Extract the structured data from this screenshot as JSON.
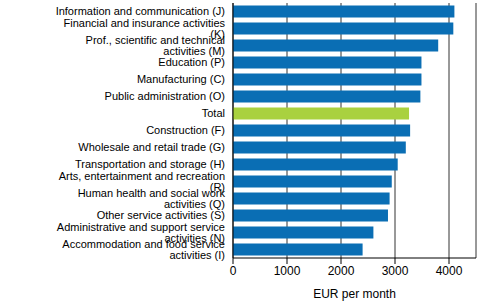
{
  "chart_data": {
    "type": "bar",
    "orientation": "horizontal",
    "x_label": "EUR per month",
    "categories": [
      "Information and communication (J)",
      "Financial and insurance activities (K)",
      "Prof., scientific and technical activities (M)",
      "Education (P)",
      "Manufacturing (C)",
      "Public administration (O)",
      "Total",
      "Construction (F)",
      "Wholesale and retail trade (G)",
      "Transportation and storage (H)",
      "Arts, entertainment and recreation (R)",
      "Human health and social work activities (Q)",
      "Other service activities (S)",
      "Administrative and support service activities (N)",
      "Accommodation and food service activities (I)"
    ],
    "values": [
      4100,
      4080,
      3800,
      3490,
      3490,
      3470,
      3260,
      3280,
      3200,
      3050,
      2940,
      2900,
      2870,
      2600,
      2400
    ],
    "colors": [
      "#0a6eb4",
      "#0a6eb4",
      "#0a6eb4",
      "#0a6eb4",
      "#0a6eb4",
      "#0a6eb4",
      "#a9d13f",
      "#0a6eb4",
      "#0a6eb4",
      "#0a6eb4",
      "#0a6eb4",
      "#0a6eb4",
      "#0a6eb4",
      "#0a6eb4",
      "#0a6eb4"
    ],
    "xlim": [
      0,
      4500
    ],
    "xticks": [
      0,
      1000,
      2000,
      3000,
      4000
    ],
    "grid": true
  }
}
